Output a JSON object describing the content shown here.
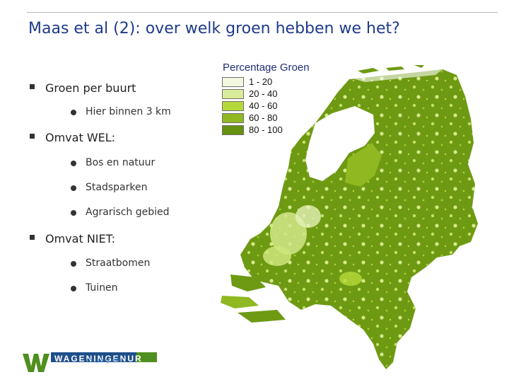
{
  "slide": {
    "title": "Maas et al (2): over welk groen hebben we het?"
  },
  "bullets": [
    {
      "text": "Groen per buurt",
      "sub": [
        "Hier binnen 3 km"
      ]
    },
    {
      "text": "Omvat WEL:",
      "sub": [
        "Bos en natuur",
        "Stadsparken",
        "Agrarisch gebied"
      ]
    },
    {
      "text": "Omvat NIET:",
      "sub": [
        "Straatbomen",
        "Tuinen"
      ]
    }
  ],
  "map": {
    "title": "Percentage Groen",
    "legend": [
      {
        "label": "1 - 20",
        "color": "#f2f8df"
      },
      {
        "label": "20 - 40",
        "color": "#d9ec99"
      },
      {
        "label": "40 - 60",
        "color": "#b5d93a"
      },
      {
        "label": "60 - 80",
        "color": "#8fb821"
      },
      {
        "label": "80 - 100",
        "color": "#66900f"
      }
    ]
  },
  "logo": {
    "name": "WAGENINGEN",
    "suffix": "UR",
    "tagline": "For quality of life"
  },
  "colors": {
    "title": "#1f3a8a",
    "map_dark": "#6e9a13",
    "map_light": "#c7e06a",
    "logo_blue": "#1f4f8a",
    "logo_green": "#4f8f1f"
  }
}
